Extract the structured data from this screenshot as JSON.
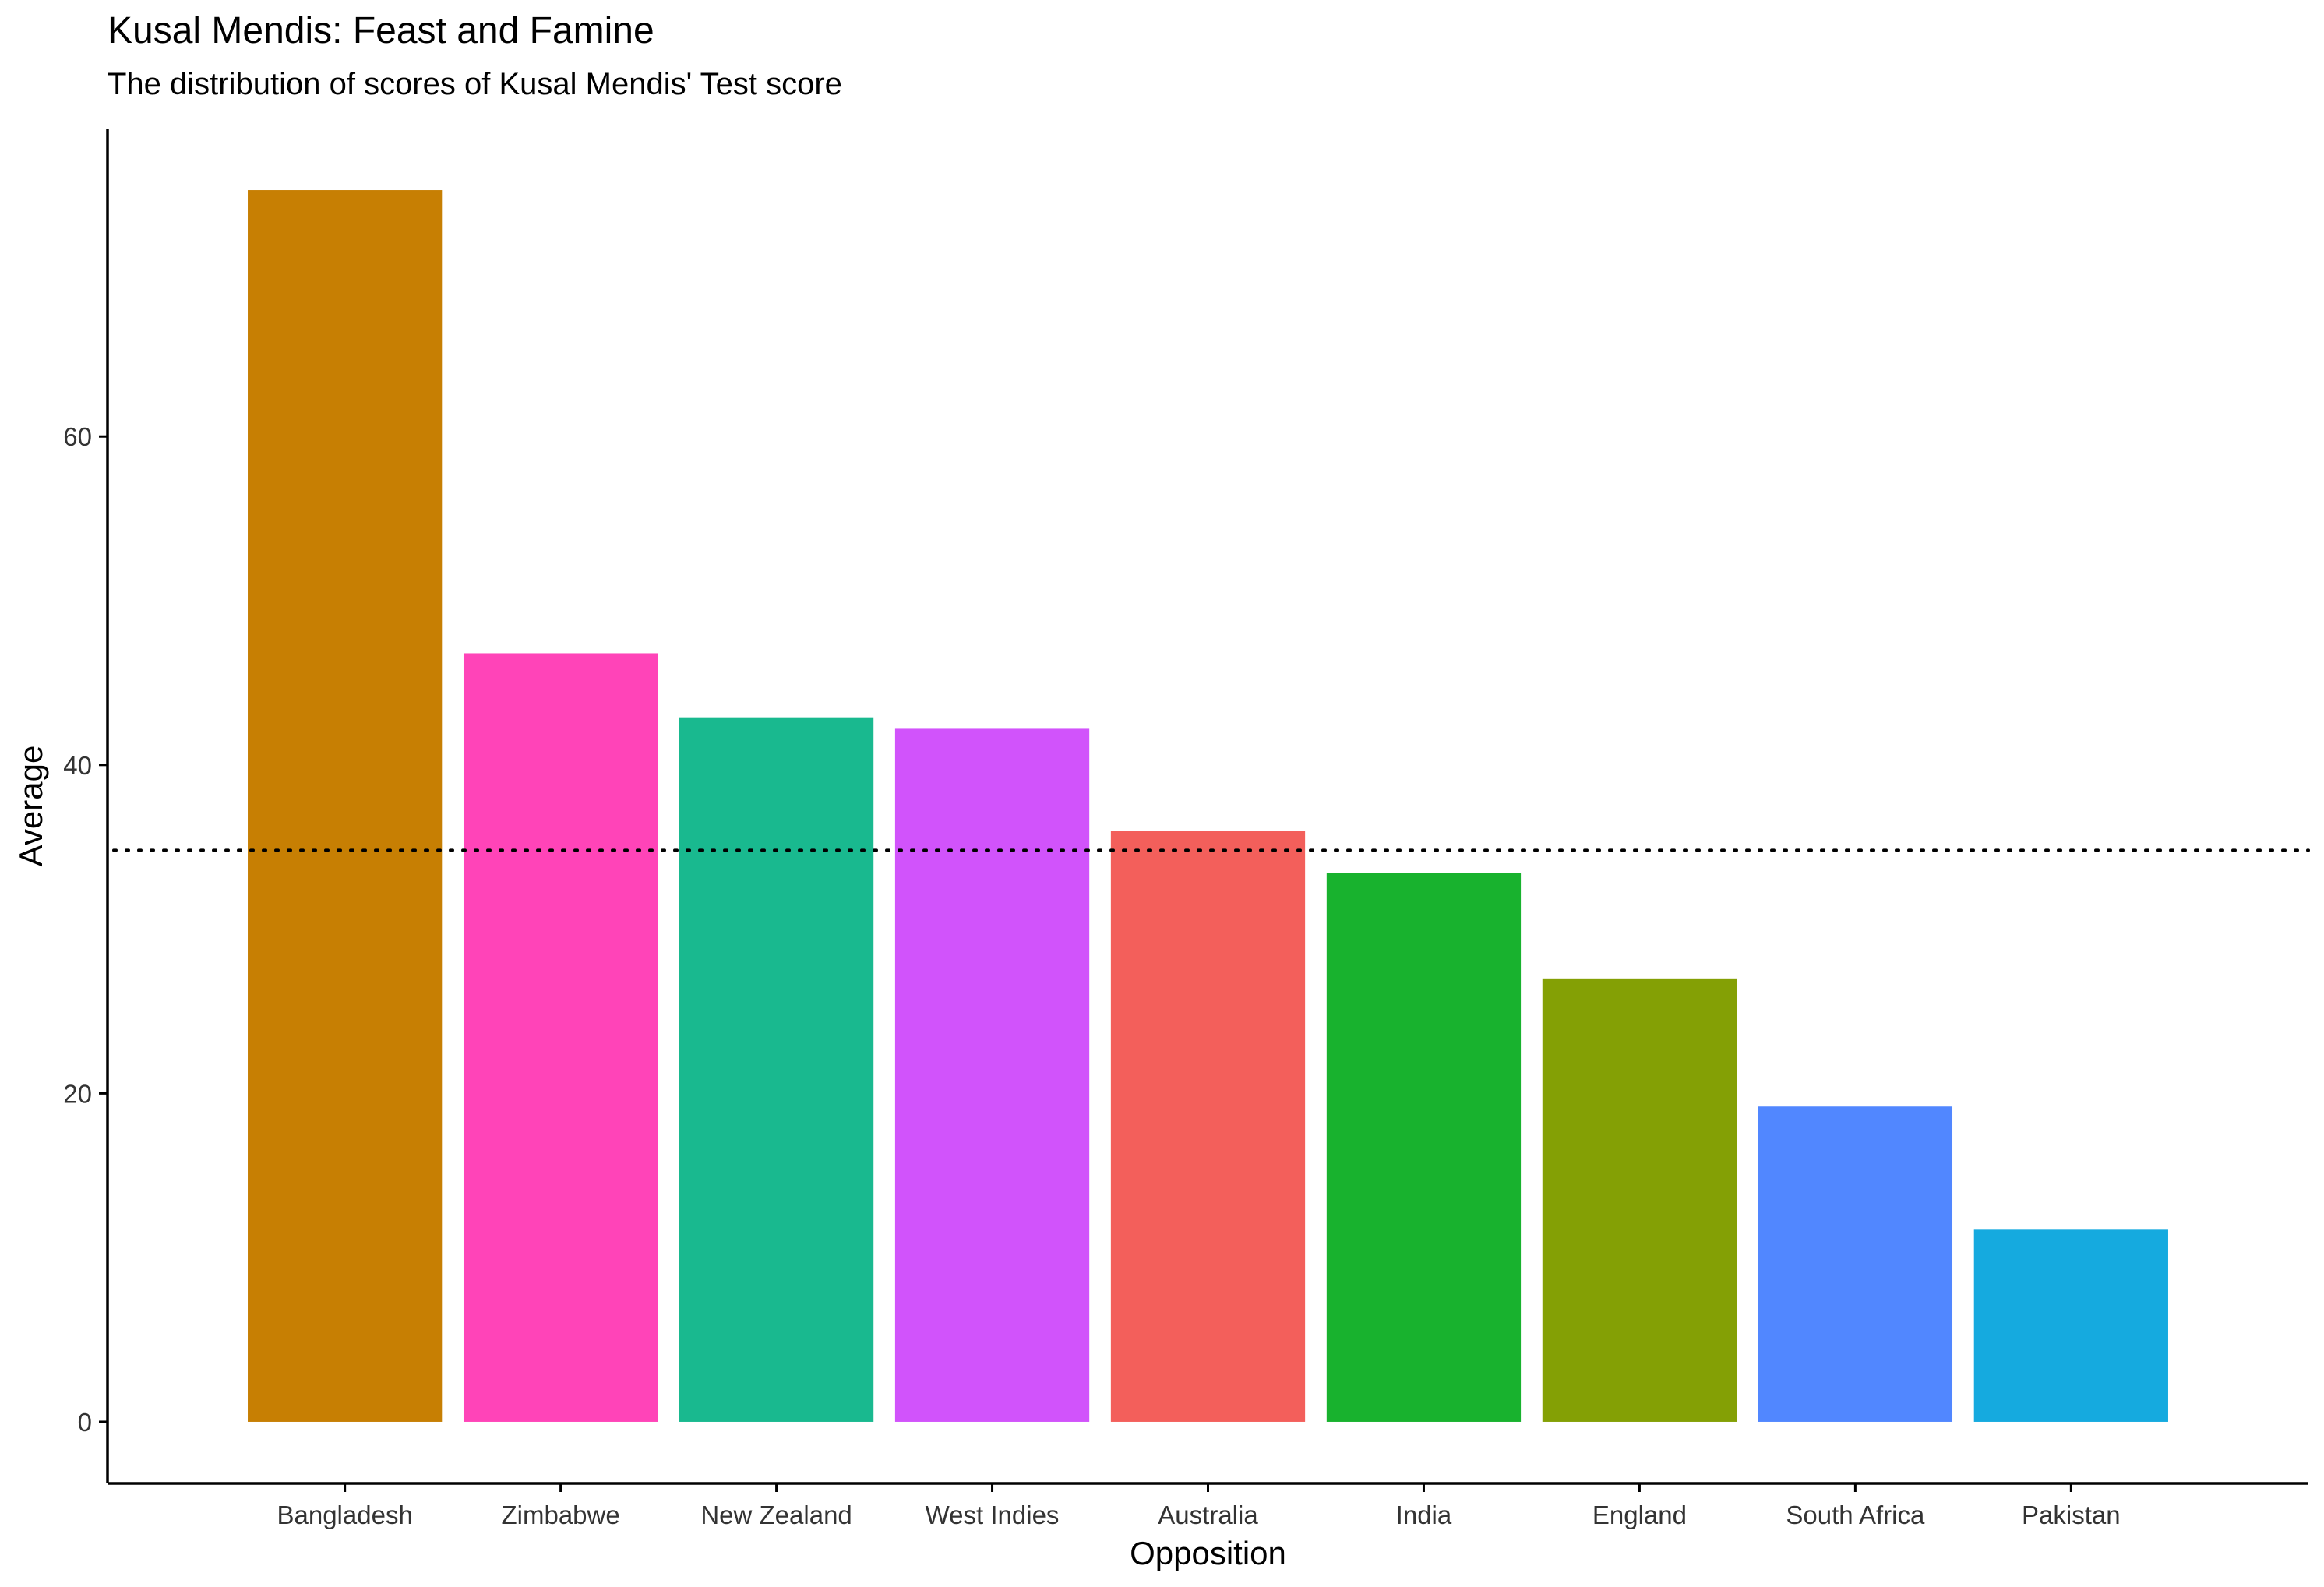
{
  "chart_data": {
    "type": "bar",
    "title": "Kusal Mendis: Feast and Famine",
    "subtitle": "The distribution of scores of Kusal Mendis' Test score",
    "xlabel": "Opposition",
    "ylabel": "Average",
    "categories": [
      "Bangladesh",
      "Zimbabwe",
      "New Zealand",
      "West Indies",
      "Australia",
      "India",
      "England",
      "South Africa",
      "Pakistan"
    ],
    "values": [
      75.0,
      46.8,
      42.9,
      42.2,
      36.0,
      33.4,
      27.0,
      19.2,
      11.7
    ],
    "colors": [
      "#C77F03",
      "#FF44B8",
      "#19B98F",
      "#D153FB",
      "#F35F5B",
      "#18B22E",
      "#84A005",
      "#5187FF",
      "#15AADF"
    ],
    "reference_line": {
      "value": 34.8,
      "style": "dotted"
    },
    "ylim": [
      -3.75,
      78.75
    ],
    "yticks": [
      0,
      20,
      40,
      60
    ],
    "grid": false,
    "legend": "none"
  }
}
